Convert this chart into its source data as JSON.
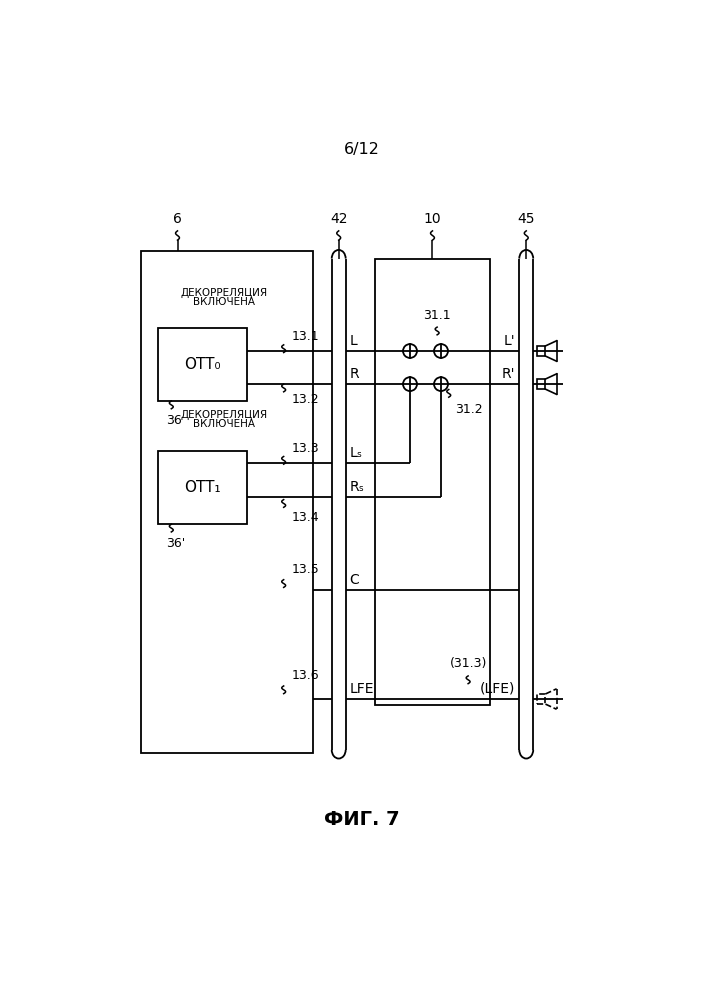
{
  "page_label": "6/12",
  "fig_label": "ФИГ. 7",
  "bg_color": "#ffffff",
  "line_color": "#000000",
  "labels": {
    "ref6": "6",
    "ref42": "42",
    "ref10": "10",
    "ref45": "45",
    "ref13_1": "13.1",
    "ref13_2": "13.2",
    "ref13_3": "13.3",
    "ref13_4": "13.4",
    "ref13_5": "13.5",
    "ref13_6": "13.6",
    "ref36": "36",
    "ref36p": "36'",
    "ref31_1": "31.1",
    "ref31_2": "31.2",
    "ref31_3": "(31.3)",
    "label_L": "L",
    "label_R": "R",
    "label_Ls": "Lₛ",
    "label_Rs": "Rₛ",
    "label_C": "C",
    "label_LFE": "LFE",
    "label_Lp": "L'",
    "label_Rp": "R'",
    "label_LFEp": "(LFE)",
    "ott0_text": "OTT₀",
    "ott1_text": "OTT₁",
    "decor1_line1": "ДЕКОРРЕЛЯЦИЯ",
    "decor1_line2": "ВКЛЮЧЕНА",
    "decor2_line1": "ДЕКОРРЕЛЯЦИЯ",
    "decor2_line2": "ВКЛЮЧЕНА"
  }
}
